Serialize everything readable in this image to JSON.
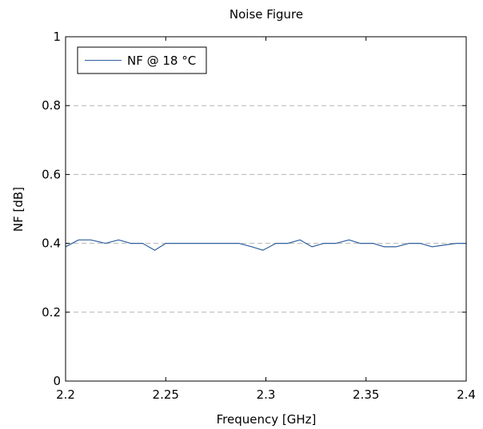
{
  "chart_data": {
    "type": "line",
    "title": "Noise Figure",
    "xlabel": "Frequency [GHz]",
    "ylabel": "NF [dB]",
    "xlim": [
      2.2,
      2.4
    ],
    "ylim": [
      0,
      1
    ],
    "x_ticks": [
      "2.2",
      "2.25",
      "2.3",
      "2.35",
      "2.4"
    ],
    "y_ticks": [
      "0",
      "0.2",
      "0.4",
      "0.6",
      "0.8",
      "1"
    ],
    "grid": "horizontal-dashed",
    "legend_position": "top-left",
    "series": [
      {
        "name": "NF @ 18 °C",
        "color": "#2e5f9e",
        "x": [
          2.2,
          2.2065,
          2.2125,
          2.22,
          2.2265,
          2.2325,
          2.2385,
          2.2445,
          2.25,
          2.2565,
          2.2625,
          2.2685,
          2.275,
          2.2805,
          2.2865,
          2.293,
          2.2985,
          2.305,
          2.311,
          2.317,
          2.323,
          2.329,
          2.335,
          2.3415,
          2.347,
          2.3535,
          2.359,
          2.365,
          2.3715,
          2.377,
          2.383,
          2.389,
          2.395,
          2.4
        ],
        "y": [
          0.39,
          0.41,
          0.41,
          0.4,
          0.41,
          0.4,
          0.4,
          0.38,
          0.4,
          0.4,
          0.4,
          0.4,
          0.4,
          0.4,
          0.4,
          0.39,
          0.38,
          0.4,
          0.4,
          0.41,
          0.39,
          0.4,
          0.4,
          0.41,
          0.4,
          0.4,
          0.39,
          0.39,
          0.4,
          0.4,
          0.39,
          0.395,
          0.4,
          0.4
        ]
      }
    ]
  }
}
